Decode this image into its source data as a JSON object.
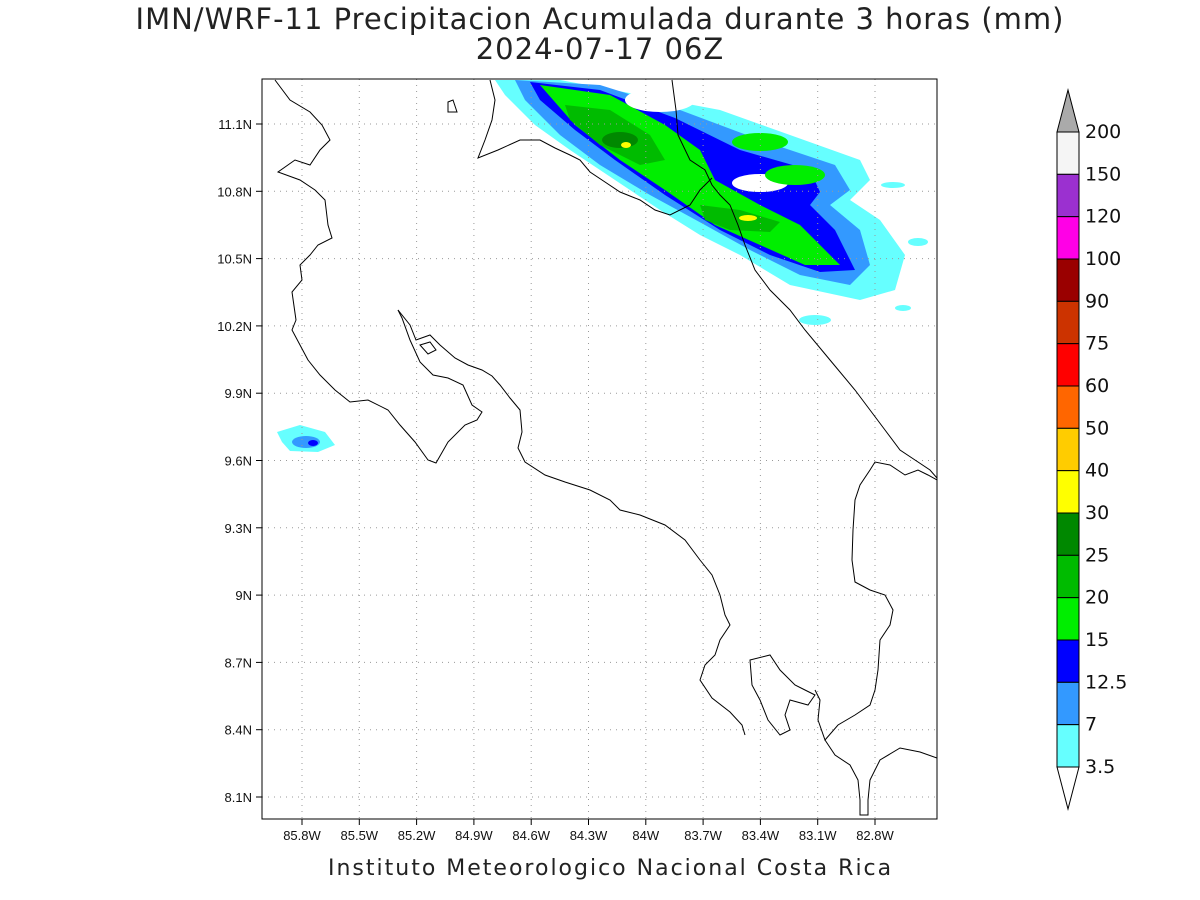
{
  "title": {
    "line1": "IMN/WRF-11 Precipitacion Acumulada durante 3 horas (mm)",
    "line2": "2024-07-17 06Z"
  },
  "footer": "Instituto Meteorologico Nacional Costa Rica",
  "axes": {
    "lat_ticks": [
      "11.1N",
      "10.8N",
      "10.5N",
      "10.2N",
      "9.9N",
      "9.6N",
      "9.3N",
      "9N",
      "8.7N",
      "8.4N",
      "8.1N"
    ],
    "lon_ticks": [
      "85.8W",
      "85.5W",
      "85.2W",
      "84.9W",
      "84.6W",
      "84.3W",
      "84W",
      "83.7W",
      "83.4W",
      "83.1W",
      "82.8W"
    ],
    "grid": true
  },
  "colorbar": {
    "labels": [
      "200",
      "150",
      "120",
      "100",
      "90",
      "75",
      "60",
      "50",
      "40",
      "30",
      "25",
      "20",
      "15",
      "12.5",
      "7",
      "3.5"
    ],
    "colors": [
      "#f5f5f5",
      "#9b30d0",
      "#ff00e6",
      "#9a0000",
      "#cc3300",
      "#ff0000",
      "#ff6600",
      "#ffcc00",
      "#ffff00",
      "#008800",
      "#00bb00",
      "#00ee00",
      "#0000ff",
      "#3399ff",
      "#66ffff"
    ],
    "over_color": "#aaaaaa",
    "under_color": "#ffffff"
  }
}
